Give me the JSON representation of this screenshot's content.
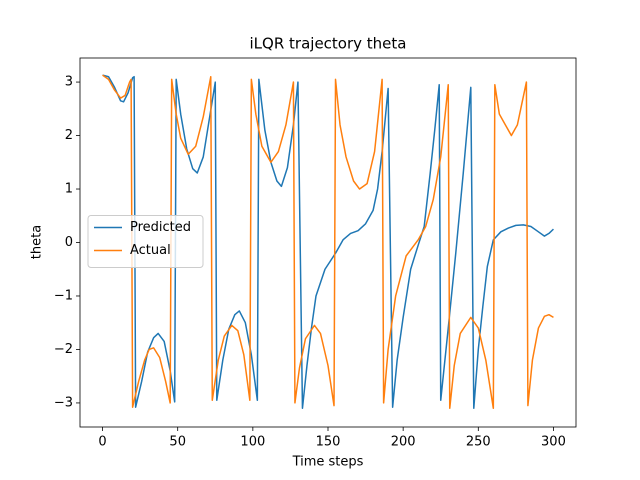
{
  "chart_data": {
    "type": "line",
    "title": "iLQR trajectory theta",
    "x_label": "Time steps",
    "y_label": "theta",
    "xlim": [
      -15,
      315
    ],
    "ylim": [
      -3.45,
      3.45
    ],
    "xticks": [
      0,
      50,
      100,
      150,
      200,
      250,
      300
    ],
    "yticks": [
      {
        "value": -3,
        "label": "−3"
      },
      {
        "value": -2,
        "label": "−2"
      },
      {
        "value": -1,
        "label": "−1"
      },
      0,
      1,
      2,
      3
    ],
    "grid": false,
    "legend": "center left",
    "series": [
      {
        "name": "Predicted",
        "color": "#1f77b4",
        "x": [
          0,
          4,
          8,
          12,
          14,
          17,
          20,
          21,
          22,
          26,
          30,
          34,
          37,
          41,
          45,
          48,
          49,
          52,
          56,
          60,
          63,
          67,
          71,
          75,
          76,
          80,
          84,
          88,
          91,
          95,
          99,
          103,
          104,
          108,
          112,
          116,
          119,
          123,
          127,
          130,
          133,
          136,
          139,
          142,
          148,
          155,
          160,
          165,
          170,
          175,
          180,
          183,
          186,
          190,
          193,
          196,
          200,
          205,
          210,
          214,
          218,
          221,
          224,
          225,
          230,
          235,
          240,
          245,
          247,
          250,
          253,
          256,
          260,
          265,
          270,
          275,
          280,
          285,
          290,
          294,
          297,
          300
        ],
        "values": [
          3.13,
          3.1,
          2.9,
          2.65,
          2.63,
          2.8,
          3.08,
          3.1,
          -3.08,
          -2.6,
          -2.05,
          -1.78,
          -1.7,
          -1.85,
          -2.4,
          -2.98,
          3.05,
          2.4,
          1.75,
          1.38,
          1.3,
          1.6,
          2.3,
          3.0,
          -2.95,
          -2.2,
          -1.62,
          -1.35,
          -1.28,
          -1.5,
          -2.1,
          -2.95,
          3.05,
          2.1,
          1.5,
          1.15,
          1.05,
          1.4,
          2.2,
          3.0,
          -3.1,
          -2.3,
          -1.6,
          -1.0,
          -0.5,
          -0.2,
          0.05,
          0.17,
          0.22,
          0.35,
          0.6,
          1.0,
          1.7,
          2.88,
          -3.08,
          -2.2,
          -1.4,
          -0.5,
          -0.05,
          0.3,
          1.3,
          2.1,
          2.95,
          -2.95,
          -1.6,
          -0.2,
          1.3,
          2.9,
          -3.1,
          -2.0,
          -1.2,
          -0.45,
          0.05,
          0.2,
          0.27,
          0.32,
          0.33,
          0.3,
          0.2,
          0.12,
          0.17,
          0.25
        ]
      },
      {
        "name": "Actual",
        "color": "#ff7f0e",
        "x": [
          0,
          4,
          8,
          12,
          15,
          18,
          19,
          20,
          24,
          28,
          31,
          34,
          38,
          42,
          45,
          46,
          49,
          52,
          57,
          62,
          67,
          72,
          73,
          77,
          81,
          86,
          90,
          94,
          98,
          99,
          102,
          106,
          112,
          117,
          122,
          127,
          128,
          131,
          135,
          141,
          145,
          150,
          154,
          155,
          158,
          162,
          167,
          171,
          176,
          181,
          186,
          187,
          190,
          195,
          202,
          210,
          215,
          220,
          225,
          230,
          231,
          234,
          238,
          245,
          250,
          255,
          260,
          261,
          264,
          268,
          272,
          276,
          279,
          282,
          283,
          286,
          290,
          294,
          297,
          300
        ],
        "values": [
          3.13,
          3.05,
          2.85,
          2.7,
          2.75,
          3.0,
          3.05,
          -3.08,
          -2.6,
          -2.2,
          -2.0,
          -1.97,
          -2.15,
          -2.6,
          -3.0,
          3.05,
          2.4,
          1.95,
          1.65,
          1.8,
          2.35,
          3.1,
          -2.95,
          -2.2,
          -1.75,
          -1.55,
          -1.65,
          -2.1,
          -2.95,
          3.05,
          2.4,
          1.8,
          1.5,
          1.7,
          2.2,
          3.0,
          -3.0,
          -2.35,
          -1.8,
          -1.55,
          -1.7,
          -2.3,
          -3.05,
          3.05,
          2.2,
          1.6,
          1.15,
          1.0,
          1.1,
          1.7,
          3.05,
          -3.0,
          -2.0,
          -1.0,
          -0.25,
          0.05,
          0.3,
          0.8,
          1.6,
          2.95,
          -3.1,
          -2.3,
          -1.7,
          -1.4,
          -1.6,
          -2.2,
          -3.1,
          2.95,
          2.4,
          2.2,
          2.0,
          2.2,
          2.6,
          3.0,
          -3.05,
          -2.2,
          -1.6,
          -1.38,
          -1.35,
          -1.4
        ]
      }
    ]
  }
}
